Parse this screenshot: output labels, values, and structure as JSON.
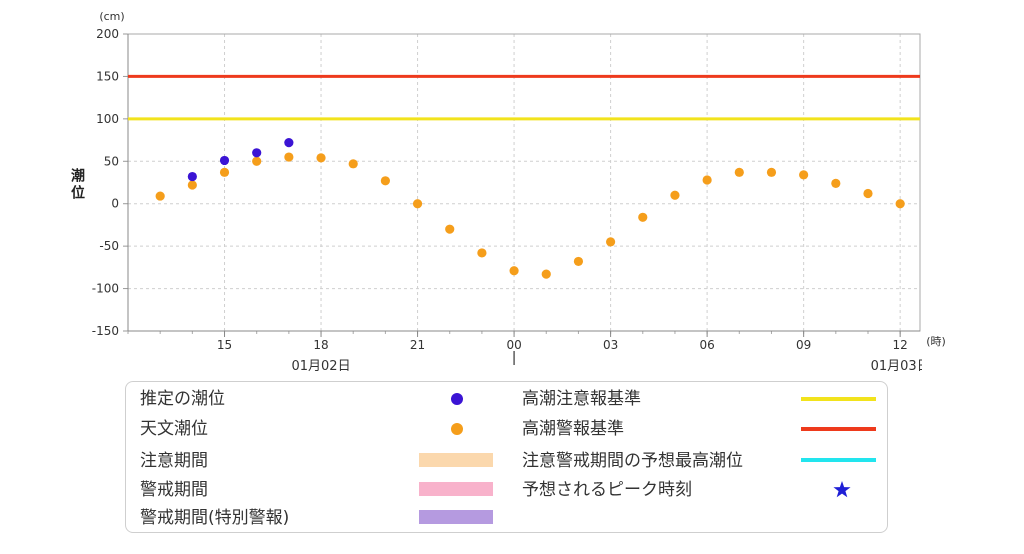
{
  "chart_data": {
    "type": "scatter",
    "y_unit": "(cm)",
    "x_unit": "(時)",
    "ylabel": "潮位",
    "xlabel": "",
    "ylim": [
      -150,
      200
    ],
    "y_ticks": [
      200,
      150,
      100,
      50,
      0,
      -50,
      -100,
      -150
    ],
    "xlim": [
      "01-02 12:00",
      "01-03 12:37"
    ],
    "x_ticks": [
      {
        "t": "01-02 15:00",
        "label": "15"
      },
      {
        "t": "01-02 18:00",
        "label": "18"
      },
      {
        "t": "01-02 21:00",
        "label": "21"
      },
      {
        "t": "01-03 00:00",
        "label": "00"
      },
      {
        "t": "01-03 03:00",
        "label": "03"
      },
      {
        "t": "01-03 06:00",
        "label": "06"
      },
      {
        "t": "01-03 09:00",
        "label": "09"
      },
      {
        "t": "01-03 12:00",
        "label": "12"
      }
    ],
    "date_labels": [
      {
        "t": "01-02 18:00",
        "label": "01月02日"
      },
      {
        "t": "01-03 12:00",
        "label": "01月03日"
      }
    ],
    "date_boundary": "01-03 00:00",
    "grid": true,
    "series": [
      {
        "name": "推定の潮位",
        "color": "#3b14d4",
        "points": [
          {
            "x": "01-02 14:00",
            "y": 32
          },
          {
            "x": "01-02 15:00",
            "y": 51
          },
          {
            "x": "01-02 16:00",
            "y": 60
          },
          {
            "x": "01-02 17:00",
            "y": 72
          }
        ]
      },
      {
        "name": "天文潮位",
        "color": "#f59e1b",
        "points": [
          {
            "x": "01-02 13:00",
            "y": 9
          },
          {
            "x": "01-02 14:00",
            "y": 22
          },
          {
            "x": "01-02 15:00",
            "y": 37
          },
          {
            "x": "01-02 16:00",
            "y": 50
          },
          {
            "x": "01-02 17:00",
            "y": 55
          },
          {
            "x": "01-02 18:00",
            "y": 54
          },
          {
            "x": "01-02 19:00",
            "y": 47
          },
          {
            "x": "01-02 20:00",
            "y": 27
          },
          {
            "x": "01-02 21:00",
            "y": 0
          },
          {
            "x": "01-02 22:00",
            "y": -30
          },
          {
            "x": "01-02 23:00",
            "y": -58
          },
          {
            "x": "01-03 00:00",
            "y": -79
          },
          {
            "x": "01-03 01:00",
            "y": -83
          },
          {
            "x": "01-03 02:00",
            "y": -68
          },
          {
            "x": "01-03 03:00",
            "y": -45
          },
          {
            "x": "01-03 04:00",
            "y": -16
          },
          {
            "x": "01-03 05:00",
            "y": 10
          },
          {
            "x": "01-03 06:00",
            "y": 28
          },
          {
            "x": "01-03 07:00",
            "y": 37
          },
          {
            "x": "01-03 08:00",
            "y": 37
          },
          {
            "x": "01-03 09:00",
            "y": 34
          },
          {
            "x": "01-03 10:00",
            "y": 24
          },
          {
            "x": "01-03 11:00",
            "y": 12
          },
          {
            "x": "01-03 12:00",
            "y": 0
          }
        ]
      }
    ],
    "reference_lines": [
      {
        "name": "高潮警報基準",
        "value": 150,
        "color": "#ee3a1c"
      },
      {
        "name": "高潮注意報基準",
        "value": 100,
        "color": "#f2e31c"
      }
    ]
  },
  "legend": {
    "left": [
      {
        "label": "推定の潮位",
        "symbol": "dot",
        "color": "#3b14d4"
      },
      {
        "label": "天文潮位",
        "symbol": "dot",
        "color": "#f59e1b"
      },
      {
        "label": "注意期間",
        "symbol": "bar",
        "color": "#fbd8ad"
      },
      {
        "label": "警戒期間",
        "symbol": "bar",
        "color": "#f8b2cb"
      },
      {
        "label": "警戒期間(特別警報)",
        "symbol": "bar",
        "color": "#b59ae0"
      }
    ],
    "right": [
      {
        "label": "高潮注意報基準",
        "symbol": "line",
        "color": "#f2e31c"
      },
      {
        "label": "高潮警報基準",
        "symbol": "line",
        "color": "#ee3a1c"
      },
      {
        "label": "注意警戒期間の予想最高潮位",
        "symbol": "line",
        "color": "#22e5ee"
      },
      {
        "label": "予想されるピーク時刻",
        "symbol": "star-icon",
        "color": "#1f1fd6"
      }
    ]
  }
}
